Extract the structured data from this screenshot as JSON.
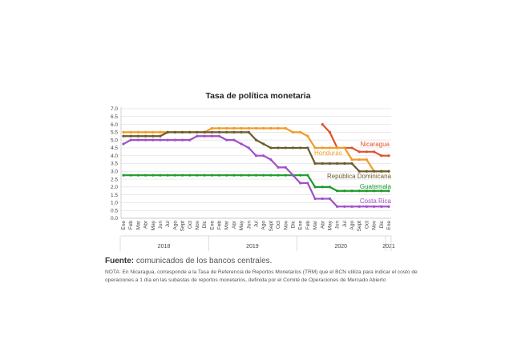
{
  "chart_data": {
    "type": "line",
    "title": "Tasa de política monetaria",
    "ylim": [
      0,
      7
    ],
    "yticks": [
      "0.0",
      "0.5",
      "1.0",
      "1.5",
      "2.0",
      "2.5",
      "3.0",
      "3.5",
      "4.0",
      "4.5",
      "5.0",
      "5.5",
      "6.0",
      "6.5",
      "7.0"
    ],
    "months": [
      "Ene",
      "Feb",
      "Mar",
      "Abr",
      "May",
      "Jun",
      "Jul",
      "Ago",
      "Sept",
      "Oct",
      "Nov",
      "Dic",
      "Ene",
      "Feb",
      "Mar",
      "Abr",
      "May",
      "Jun",
      "Jul",
      "Ago",
      "Sept",
      "Oct",
      "Nov",
      "Dic",
      "Ene",
      "Feb",
      "Mar",
      "Abr",
      "May",
      "Jun",
      "Jul",
      "Ago",
      "Sept",
      "Oct",
      "Nov",
      "Dic",
      "Ene"
    ],
    "years": [
      {
        "label": "2018",
        "start": 0,
        "end": 11
      },
      {
        "label": "2019",
        "start": 12,
        "end": 23
      },
      {
        "label": "2020",
        "start": 24,
        "end": 35
      },
      {
        "label": "2021",
        "start": 36,
        "end": 36
      }
    ],
    "grid": true,
    "series": [
      {
        "name": "Nicaragua",
        "color": "#e3502a",
        "values": [
          null,
          null,
          null,
          null,
          null,
          null,
          null,
          null,
          null,
          null,
          null,
          null,
          null,
          null,
          null,
          null,
          null,
          null,
          null,
          null,
          null,
          null,
          null,
          null,
          null,
          null,
          null,
          6.0,
          5.5,
          4.5,
          4.5,
          4.5,
          4.25,
          4.25,
          4.25,
          4.0,
          4.0
        ]
      },
      {
        "name": "Honduras",
        "color": "#f29a26",
        "values": [
          5.5,
          5.5,
          5.5,
          5.5,
          5.5,
          5.5,
          5.5,
          5.5,
          5.5,
          5.5,
          5.5,
          5.5,
          5.75,
          5.75,
          5.75,
          5.75,
          5.75,
          5.75,
          5.75,
          5.75,
          5.75,
          5.75,
          5.75,
          5.5,
          5.5,
          5.25,
          4.5,
          4.5,
          4.5,
          4.5,
          4.5,
          3.75,
          3.75,
          3.75,
          3.0,
          3.0,
          3.0
        ]
      },
      {
        "name": "República Dominicana",
        "color": "#6b5a2c",
        "values": [
          5.25,
          5.25,
          5.25,
          5.25,
          5.25,
          5.25,
          5.5,
          5.5,
          5.5,
          5.5,
          5.5,
          5.5,
          5.5,
          5.5,
          5.5,
          5.5,
          5.5,
          5.5,
          5.0,
          4.75,
          4.5,
          4.5,
          4.5,
          4.5,
          4.5,
          4.5,
          3.5,
          3.5,
          3.5,
          3.5,
          3.5,
          3.5,
          3.0,
          3.0,
          3.0,
          3.0,
          3.0
        ]
      },
      {
        "name": "Guatemala",
        "color": "#1f9a2c",
        "values": [
          2.75,
          2.75,
          2.75,
          2.75,
          2.75,
          2.75,
          2.75,
          2.75,
          2.75,
          2.75,
          2.75,
          2.75,
          2.75,
          2.75,
          2.75,
          2.75,
          2.75,
          2.75,
          2.75,
          2.75,
          2.75,
          2.75,
          2.75,
          2.75,
          2.75,
          2.75,
          2.0,
          2.0,
          2.0,
          1.75,
          1.75,
          1.75,
          1.75,
          1.75,
          1.75,
          1.75,
          1.75
        ]
      },
      {
        "name": "Costa Rica",
        "color": "#a24fc9",
        "values": [
          4.75,
          5.0,
          5.0,
          5.0,
          5.0,
          5.0,
          5.0,
          5.0,
          5.0,
          5.0,
          5.25,
          5.25,
          5.25,
          5.25,
          5.0,
          5.0,
          4.75,
          4.5,
          4.0,
          4.0,
          3.75,
          3.25,
          3.25,
          2.75,
          2.25,
          2.25,
          1.25,
          1.25,
          1.25,
          0.75,
          0.75,
          0.75,
          0.75,
          0.75,
          0.75,
          0.75,
          0.75
        ]
      }
    ]
  },
  "source": {
    "label": "Fuente:",
    "text": "comunicados de los bancos centrales.",
    "note": "NOTA: En Nicaragua, corresponde a la Tasa de Referencia de Reportos Monetarios (TRM) que el BCN utiliza para indicar el costo de operaciones a 1 día en las subastas de reportos monetarios, definida por el Comité de Operaciones de Mercado Abierto"
  }
}
